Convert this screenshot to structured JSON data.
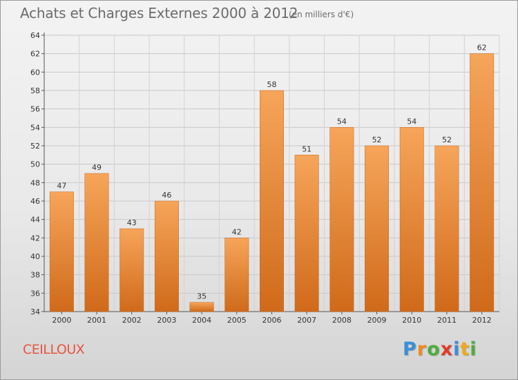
{
  "header": {
    "title": "Achats et Charges Externes 2000 à 2012",
    "unit": "(en milliers d'€)"
  },
  "footer": {
    "city": "CEILLOUX",
    "brand_letters": [
      "P",
      "r",
      "o",
      "x",
      "i",
      "t",
      "i"
    ],
    "brand_colors": [
      "#3a8fd8",
      "#f08a1f",
      "#4cae3f",
      "#e23b2a",
      "#3a8fd8",
      "#f2a81c",
      "#4cae3f"
    ]
  },
  "colors": {
    "bar_top": "#f6a55a",
    "bar_bottom": "#d06a1a",
    "city": "#e8553d"
  },
  "chart_data": {
    "type": "bar",
    "title": "Achats et Charges Externes 2000 à 2012",
    "categories": [
      "2000",
      "2001",
      "2002",
      "2003",
      "2004",
      "2005",
      "2006",
      "2007",
      "2008",
      "2009",
      "2010",
      "2011",
      "2012"
    ],
    "values": [
      47,
      49,
      43,
      46,
      35,
      42,
      58,
      51,
      54,
      52,
      54,
      52,
      62
    ],
    "ylim": [
      34,
      64
    ],
    "yticks": [
      34,
      36,
      38,
      40,
      42,
      44,
      46,
      48,
      50,
      52,
      54,
      56,
      58,
      60,
      62,
      64
    ],
    "grid": true
  }
}
